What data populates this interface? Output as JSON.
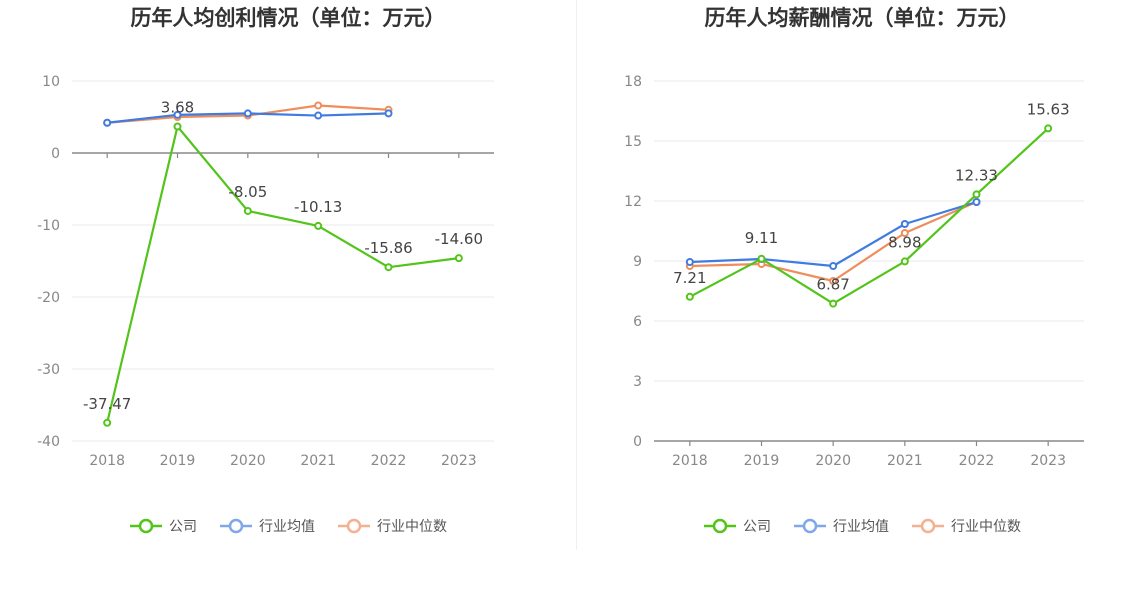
{
  "chart_data": [
    {
      "type": "line",
      "title": "历年人均创利情况（单位：万元）",
      "categories": [
        "2018",
        "2019",
        "2020",
        "2021",
        "2022",
        "2023"
      ],
      "ylim": [
        -40,
        10
      ],
      "yticks": [
        10,
        0,
        -10,
        -20,
        -30,
        -40
      ],
      "grid": true,
      "legend": "bottom",
      "series": [
        {
          "name": "公司",
          "color": "#52c41a",
          "values": [
            -37.47,
            3.68,
            -8.05,
            -10.13,
            -15.86,
            -14.6
          ],
          "labels": [
            "-37.47",
            "3.68",
            "-8.05",
            "-10.13",
            "-15.86",
            "-14.60"
          ]
        },
        {
          "name": "行业均值",
          "color": "#3f7be0",
          "values": [
            4.2,
            5.3,
            5.5,
            5.2,
            5.5,
            null
          ]
        },
        {
          "name": "行业中位数",
          "color": "#ef8d5c",
          "values": [
            4.2,
            5.0,
            5.2,
            6.6,
            6.0,
            null
          ]
        }
      ]
    },
    {
      "type": "line",
      "title": "历年人均薪酬情况（单位：万元）",
      "categories": [
        "2018",
        "2019",
        "2020",
        "2021",
        "2022",
        "2023"
      ],
      "ylim": [
        0,
        18
      ],
      "yticks": [
        18,
        15,
        12,
        9,
        6,
        3,
        0
      ],
      "grid": true,
      "legend": "bottom",
      "series": [
        {
          "name": "公司",
          "color": "#52c41a",
          "values": [
            7.21,
            9.11,
            6.87,
            8.98,
            12.33,
            15.63
          ],
          "labels": [
            "7.21",
            "9.11",
            "6.87",
            "8.98",
            "12.33",
            "15.63"
          ]
        },
        {
          "name": "行业均值",
          "color": "#3f7be0",
          "values": [
            8.95,
            9.1,
            8.75,
            10.85,
            11.95,
            null
          ]
        },
        {
          "name": "行业中位数",
          "color": "#ef8d5c",
          "values": [
            8.75,
            8.85,
            8.0,
            10.4,
            11.95,
            null
          ]
        }
      ]
    }
  ],
  "legend_colors": {
    "company": "#52c41a",
    "avg": "#7fa7ea",
    "median": "#f4b08f"
  }
}
